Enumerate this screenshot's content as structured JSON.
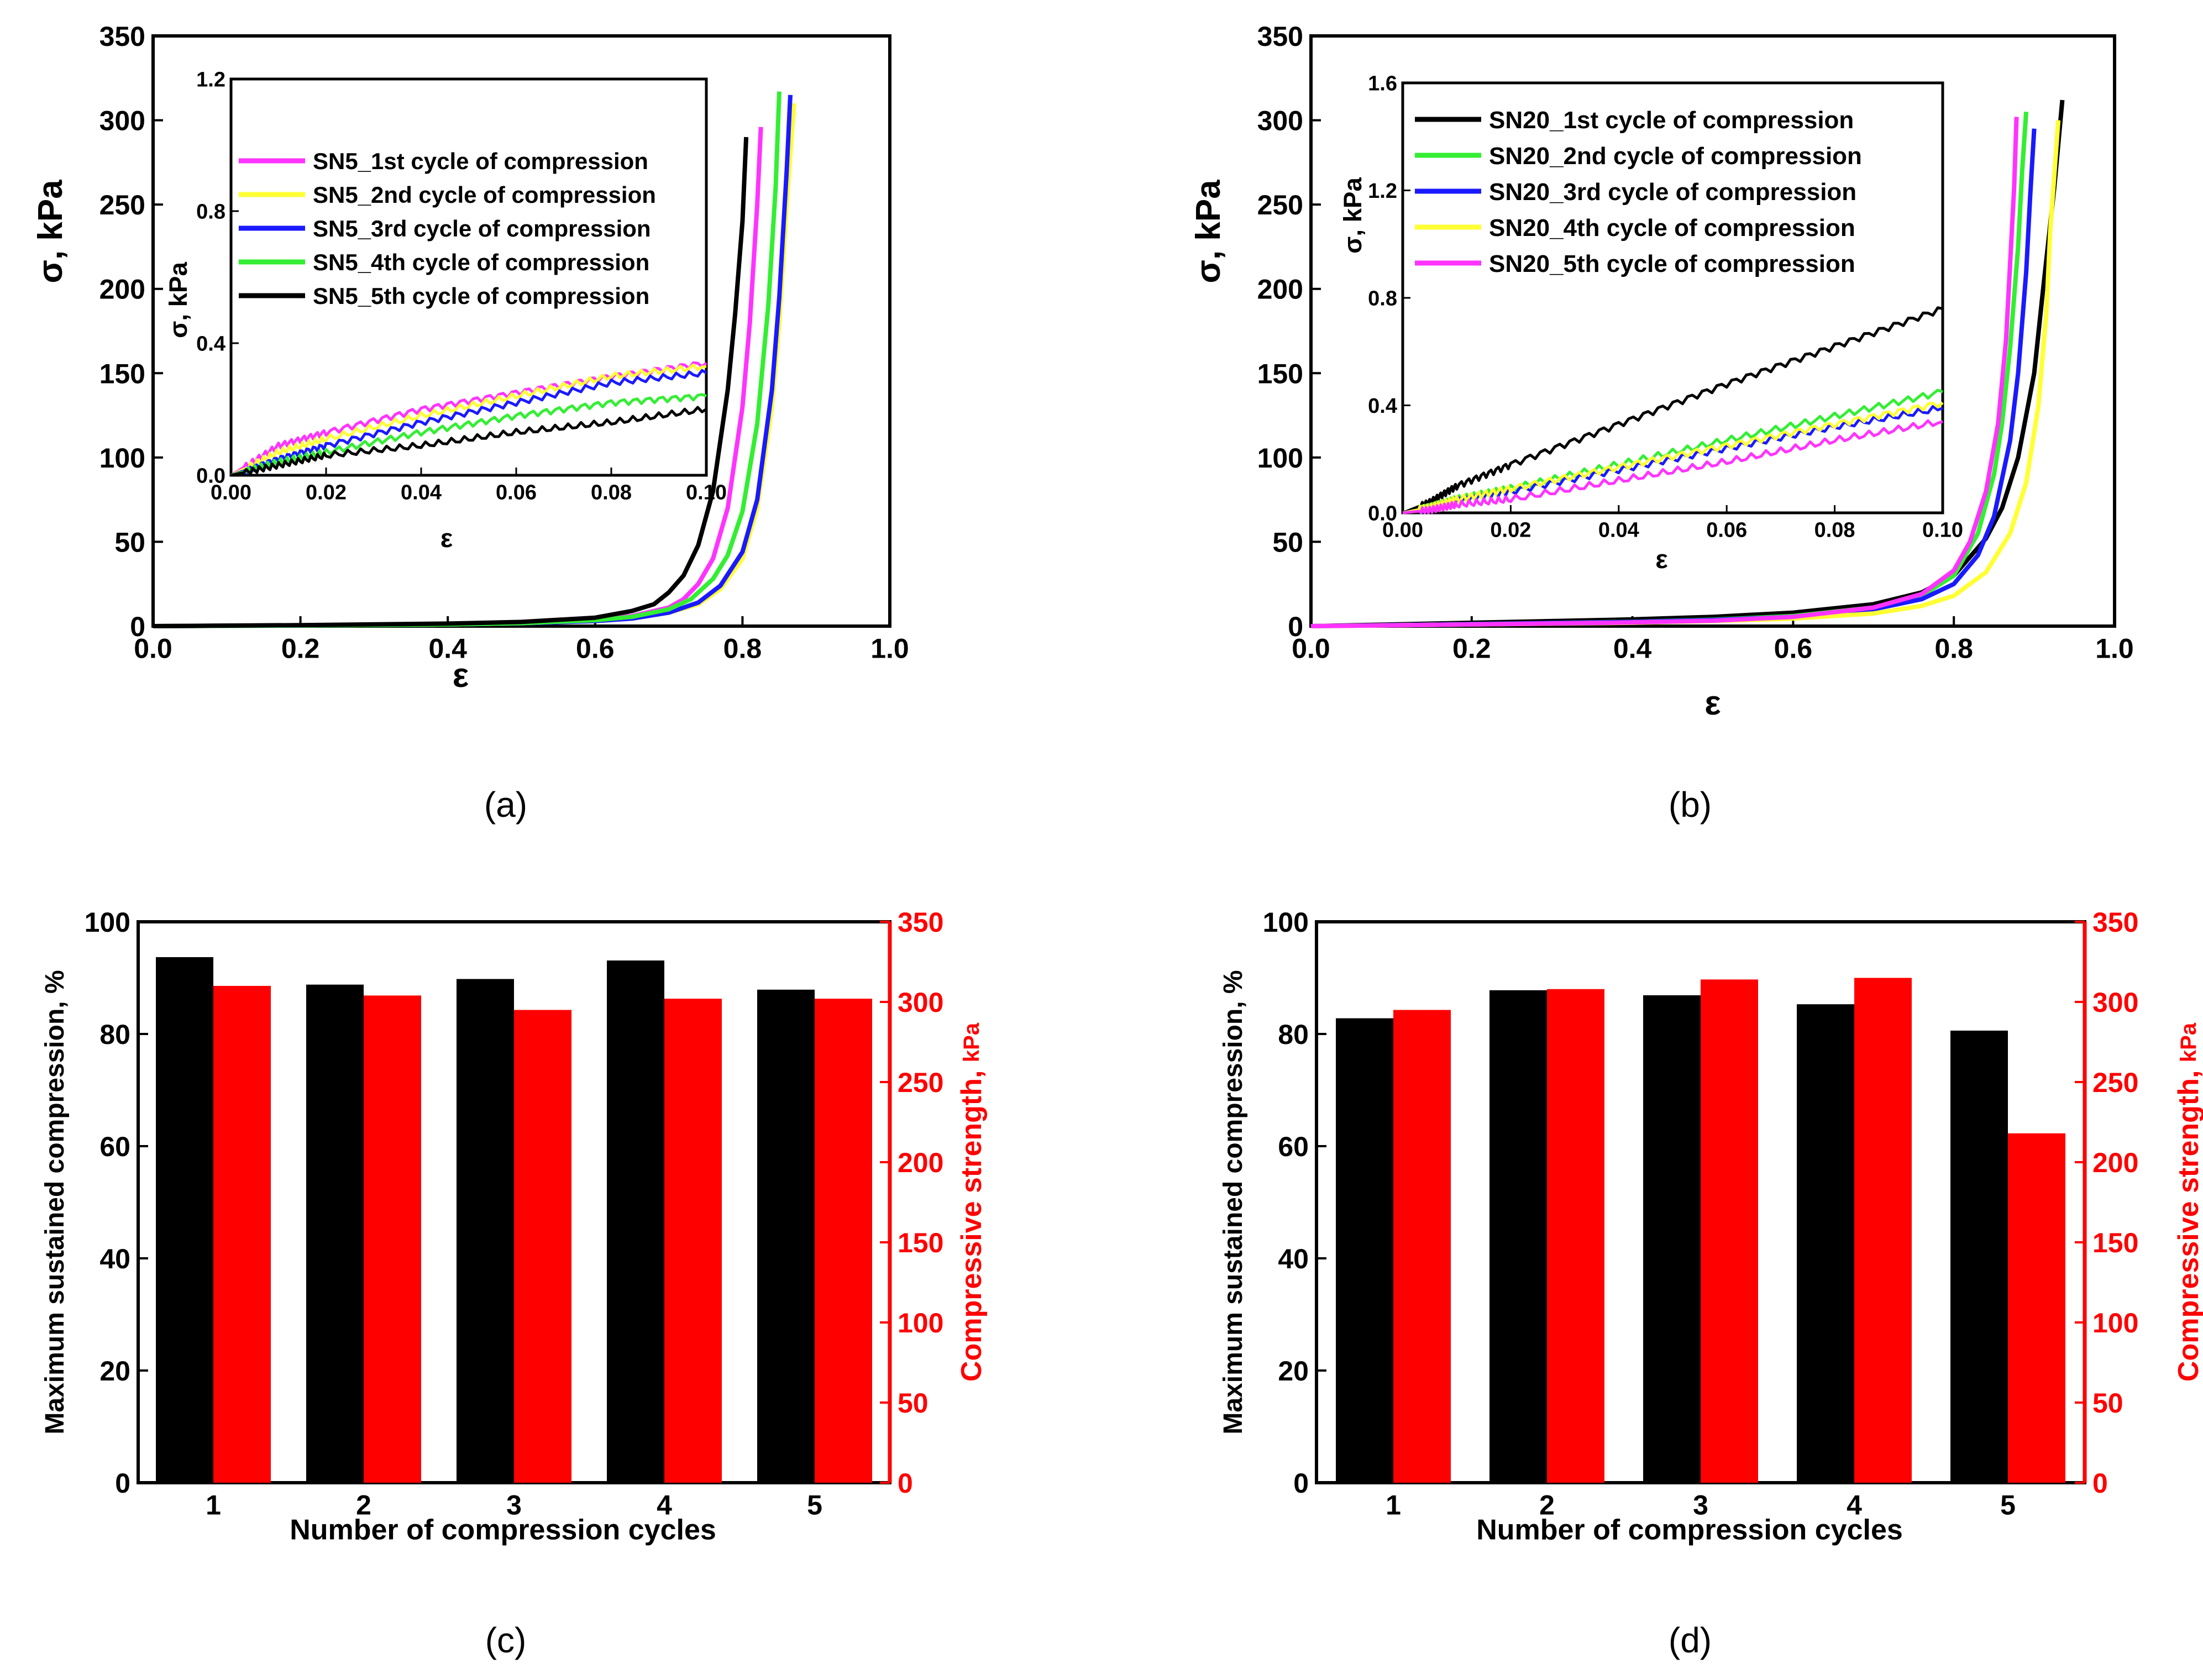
{
  "colors": {
    "black": "#000000",
    "red": "#ff0000",
    "magenta": "#ff33ff",
    "yellow": "#ffff33",
    "blue": "#1a1aff",
    "green": "#33ee33"
  },
  "panels": {
    "a": "(a)",
    "b": "(b)",
    "c": "(c)",
    "d": "(d)"
  },
  "chart_data": [
    {
      "id": "a",
      "type": "line",
      "panel_label": "(a)",
      "xlabel": "ε",
      "ylabel": "σ, kPa",
      "xlim": [
        0,
        1
      ],
      "ylim": [
        0,
        350
      ],
      "xticks": [
        "0.0",
        "0.2",
        "0.4",
        "0.6",
        "0.8",
        "1.0"
      ],
      "yticks": [
        "0",
        "50",
        "100",
        "150",
        "200",
        "250",
        "300",
        "350"
      ],
      "series": [
        {
          "name": "SN5_1st cycle of compression",
          "color": "#ff33ff",
          "x": [
            0,
            0.2,
            0.4,
            0.5,
            0.6,
            0.65,
            0.7,
            0.72,
            0.74,
            0.76,
            0.78,
            0.8,
            0.81,
            0.82,
            0.825
          ],
          "y": [
            0,
            0.5,
            1.2,
            2,
            4,
            6,
            11,
            16,
            25,
            40,
            70,
            130,
            180,
            250,
            296
          ]
        },
        {
          "name": "SN5_2nd cycle of compression",
          "color": "#ffff33",
          "x": [
            0,
            0.2,
            0.4,
            0.5,
            0.6,
            0.65,
            0.7,
            0.74,
            0.77,
            0.8,
            0.82,
            0.84,
            0.85,
            0.86,
            0.87
          ],
          "y": [
            0,
            0.4,
            1,
            1.7,
            3,
            4.5,
            8,
            13,
            22,
            40,
            70,
            130,
            180,
            250,
            310
          ]
        },
        {
          "name": "SN5_3rd cycle of compression",
          "color": "#1a1aff",
          "x": [
            0,
            0.2,
            0.4,
            0.5,
            0.6,
            0.65,
            0.7,
            0.74,
            0.77,
            0.8,
            0.82,
            0.84,
            0.85,
            0.86,
            0.865
          ],
          "y": [
            0,
            0.4,
            1,
            1.7,
            3,
            4.5,
            8,
            14,
            24,
            44,
            75,
            140,
            195,
            270,
            315
          ]
        },
        {
          "name": "SN5_4th cycle of compression",
          "color": "#33ee33",
          "x": [
            0,
            0.2,
            0.4,
            0.5,
            0.6,
            0.65,
            0.7,
            0.73,
            0.76,
            0.78,
            0.8,
            0.82,
            0.835,
            0.845,
            0.85
          ],
          "y": [
            0,
            0.4,
            1,
            1.8,
            3.5,
            5.5,
            10,
            16,
            28,
            42,
            68,
            120,
            190,
            260,
            317
          ]
        },
        {
          "name": "SN5_5th cycle of compression",
          "color": "#000000",
          "x": [
            0,
            0.2,
            0.4,
            0.5,
            0.6,
            0.65,
            0.68,
            0.7,
            0.72,
            0.74,
            0.76,
            0.78,
            0.79,
            0.8,
            0.805
          ],
          "y": [
            0,
            0.6,
            1.5,
            2.5,
            5,
            9,
            13,
            20,
            30,
            48,
            80,
            140,
            185,
            240,
            290
          ]
        }
      ],
      "inset": {
        "xlabel": "ε",
        "ylabel": "σ, kPa",
        "xlim": [
          0,
          0.1
        ],
        "ylim": [
          0,
          1.2
        ],
        "xticks": [
          "0.00",
          "0.02",
          "0.04",
          "0.06",
          "0.08",
          "0.10"
        ],
        "yticks": [
          "0.0",
          "0.4",
          "0.8",
          "1.2"
        ],
        "series": [
          {
            "name": "SN5_1st cycle of compression",
            "color": "#ff33ff",
            "x": [
              0,
              0.01,
              0.02,
              0.04,
              0.06,
              0.08,
              0.1
            ],
            "y": [
              0,
              0.09,
              0.13,
              0.2,
              0.25,
              0.3,
              0.34
            ]
          },
          {
            "name": "SN5_2nd cycle of compression",
            "color": "#ffff33",
            "x": [
              0,
              0.01,
              0.02,
              0.04,
              0.06,
              0.08,
              0.1
            ],
            "y": [
              0,
              0.07,
              0.11,
              0.18,
              0.24,
              0.3,
              0.33
            ]
          },
          {
            "name": "SN5_3rd cycle of compression",
            "color": "#1a1aff",
            "x": [
              0,
              0.01,
              0.02,
              0.04,
              0.06,
              0.08,
              0.1
            ],
            "y": [
              0,
              0.05,
              0.09,
              0.16,
              0.22,
              0.28,
              0.31
            ]
          },
          {
            "name": "SN5_4th cycle of compression",
            "color": "#33ee33",
            "x": [
              0,
              0.01,
              0.02,
              0.04,
              0.06,
              0.08,
              0.1
            ],
            "y": [
              0,
              0.04,
              0.07,
              0.13,
              0.18,
              0.22,
              0.24
            ]
          },
          {
            "name": "SN5_5th cycle of compression",
            "color": "#000000",
            "x": [
              0,
              0.01,
              0.02,
              0.04,
              0.06,
              0.08,
              0.1
            ],
            "y": [
              0,
              0.03,
              0.06,
              0.09,
              0.13,
              0.16,
              0.2
            ]
          }
        ]
      }
    },
    {
      "id": "b",
      "type": "line",
      "panel_label": "(b)",
      "xlabel": "ε",
      "ylabel": "σ, kPa",
      "xlim": [
        0,
        1
      ],
      "ylim": [
        0,
        350
      ],
      "xticks": [
        "0.0",
        "0.2",
        "0.4",
        "0.6",
        "0.8",
        "1.0"
      ],
      "yticks": [
        "0",
        "50",
        "100",
        "150",
        "200",
        "250",
        "300",
        "350"
      ],
      "series": [
        {
          "name": "SN20_1st cycle of compression",
          "color": "#000000",
          "x": [
            0,
            0.2,
            0.4,
            0.5,
            0.6,
            0.7,
            0.76,
            0.8,
            0.84,
            0.86,
            0.88,
            0.9,
            0.91,
            0.925,
            0.935
          ],
          "y": [
            0,
            2,
            4,
            5.5,
            8,
            13,
            20,
            30,
            52,
            70,
            100,
            150,
            195,
            260,
            312
          ]
        },
        {
          "name": "SN20_2nd cycle of compression",
          "color": "#33ee33",
          "x": [
            0,
            0.2,
            0.4,
            0.5,
            0.6,
            0.7,
            0.76,
            0.8,
            0.83,
            0.85,
            0.86,
            0.87,
            0.88,
            0.885,
            0.89
          ],
          "y": [
            0,
            1.2,
            2.6,
            3.8,
            6,
            11,
            18,
            30,
            55,
            90,
            120,
            165,
            225,
            270,
            305
          ]
        },
        {
          "name": "SN20_3rd cycle of compression",
          "color": "#1a1aff",
          "x": [
            0,
            0.2,
            0.4,
            0.5,
            0.6,
            0.7,
            0.76,
            0.8,
            0.83,
            0.85,
            0.87,
            0.88,
            0.89,
            0.895,
            0.9
          ],
          "y": [
            0,
            1.2,
            2.5,
            3.6,
            5.5,
            10,
            16,
            25,
            42,
            65,
            110,
            150,
            210,
            255,
            295
          ]
        },
        {
          "name": "SN20_4th cycle of compression",
          "color": "#ffff33",
          "x": [
            0,
            0.2,
            0.4,
            0.5,
            0.6,
            0.7,
            0.76,
            0.8,
            0.84,
            0.87,
            0.89,
            0.905,
            0.915,
            0.92,
            0.93
          ],
          "y": [
            0,
            1,
            2,
            3,
            4.5,
            7.5,
            12,
            18,
            32,
            55,
            85,
            130,
            185,
            235,
            300
          ]
        },
        {
          "name": "SN20_5th cycle of compression",
          "color": "#ff33ff",
          "x": [
            0,
            0.2,
            0.4,
            0.5,
            0.6,
            0.7,
            0.76,
            0.8,
            0.82,
            0.84,
            0.855,
            0.865,
            0.87,
            0.875,
            0.878
          ],
          "y": [
            0,
            1,
            2.2,
            3.2,
            5.5,
            11,
            19,
            33,
            50,
            80,
            120,
            170,
            215,
            260,
            302
          ]
        }
      ],
      "inset": {
        "xlabel": "ε",
        "ylabel": "σ, kPa",
        "xlim": [
          0,
          0.1
        ],
        "ylim": [
          0,
          1.6
        ],
        "xticks": [
          "0.00",
          "0.02",
          "0.04",
          "0.06",
          "0.08",
          "0.10"
        ],
        "yticks": [
          "0.0",
          "0.4",
          "0.8",
          "1.2",
          "1.6"
        ],
        "series": [
          {
            "name": "SN20_1st cycle of compression",
            "color": "#000000",
            "x": [
              0,
              0.005,
              0.01,
              0.02,
              0.04,
              0.06,
              0.08,
              0.1
            ],
            "y": [
              0,
              0.04,
              0.1,
              0.18,
              0.33,
              0.48,
              0.62,
              0.76
            ]
          },
          {
            "name": "SN20_2nd cycle of compression",
            "color": "#33ee33",
            "x": [
              0,
              0.005,
              0.01,
              0.02,
              0.04,
              0.06,
              0.08,
              0.1
            ],
            "y": [
              0,
              0.02,
              0.05,
              0.09,
              0.18,
              0.27,
              0.36,
              0.45
            ]
          },
          {
            "name": "SN20_3rd cycle of compression",
            "color": "#1a1aff",
            "x": [
              0,
              0.005,
              0.01,
              0.02,
              0.04,
              0.06,
              0.08,
              0.1
            ],
            "y": [
              0,
              0.02,
              0.05,
              0.08,
              0.16,
              0.24,
              0.32,
              0.39
            ]
          },
          {
            "name": "SN20_4th cycle of compression",
            "color": "#ffff33",
            "x": [
              0,
              0.005,
              0.01,
              0.02,
              0.04,
              0.06,
              0.08,
              0.1
            ],
            "y": [
              0,
              0.02,
              0.05,
              0.09,
              0.17,
              0.25,
              0.33,
              0.41
            ]
          },
          {
            "name": "SN20_5th cycle of compression",
            "color": "#ff33ff",
            "x": [
              0,
              0.005,
              0.01,
              0.02,
              0.04,
              0.06,
              0.08,
              0.1
            ],
            "y": [
              0,
              0.01,
              0.03,
              0.05,
              0.12,
              0.19,
              0.27,
              0.34
            ]
          }
        ]
      }
    },
    {
      "id": "c",
      "type": "bar",
      "panel_label": "(c)",
      "xlabel": "Number of compression cycles",
      "ylabel_left": "Maximum sustained compression, %",
      "ylabel_right_main": "Compressive strength, ",
      "ylabel_right_unit": "kPa",
      "categories": [
        "1",
        "2",
        "3",
        "4",
        "5"
      ],
      "ylim_left": [
        0,
        100
      ],
      "ylim_right": [
        0,
        350
      ],
      "yticks_left": [
        "0",
        "20",
        "40",
        "60",
        "80",
        "100"
      ],
      "yticks_right": [
        "0",
        "50",
        "100",
        "150",
        "200",
        "250",
        "300",
        "350"
      ],
      "series": [
        {
          "name": "Maximum sustained compression, %",
          "color": "#000000",
          "axis": "left",
          "values": [
            93.7,
            88.8,
            89.8,
            93.1,
            87.9
          ]
        },
        {
          "name": "Compressive strength, kPa",
          "color": "#ff0000",
          "axis": "right",
          "values": [
            310,
            304,
            295,
            302,
            302
          ]
        }
      ]
    },
    {
      "id": "d",
      "type": "bar",
      "panel_label": "(d)",
      "xlabel": "Number of compression cycles",
      "ylabel_left": "Maximum sustained compression, %",
      "ylabel_right_main": "Compressive strength, ",
      "ylabel_right_unit": "kPa",
      "categories": [
        "1",
        "2",
        "3",
        "4",
        "5"
      ],
      "ylim_left": [
        0,
        100
      ],
      "ylim_right": [
        0,
        350
      ],
      "yticks_left": [
        "0",
        "20",
        "40",
        "60",
        "80",
        "100"
      ],
      "yticks_right": [
        "0",
        "50",
        "100",
        "150",
        "200",
        "250",
        "300",
        "350"
      ],
      "series": [
        {
          "name": "Maximum sustained compression, %",
          "color": "#000000",
          "axis": "left",
          "values": [
            82.8,
            87.8,
            86.9,
            85.3,
            80.6
          ]
        },
        {
          "name": "Compressive strength, kPa",
          "color": "#ff0000",
          "axis": "right",
          "values": [
            295,
            308,
            314,
            315,
            218
          ]
        }
      ]
    }
  ]
}
